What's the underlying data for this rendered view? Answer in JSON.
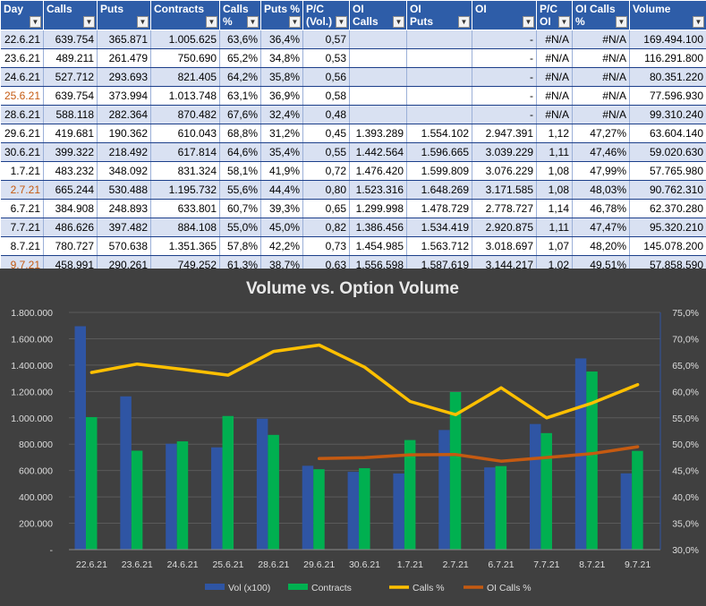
{
  "table": {
    "headers": [
      "Day",
      "Calls",
      "Puts",
      "Contracts",
      "Calls %",
      "Puts %",
      "P/C\n(Vol.)",
      "OI\nCalls",
      "OI\nPuts",
      "OI",
      "P/C\nOI",
      "OI Calls %",
      "Volume"
    ],
    "rows": [
      {
        "day": "22.6.21",
        "calls": "639.754",
        "puts": "365.871",
        "contracts": "1.005.625",
        "calls_pct": "63,6%",
        "puts_pct": "36,4%",
        "pc_vol": "0,57",
        "oi_calls": "",
        "oi_puts": "",
        "oi": "-",
        "pc_oi": "#N/A",
        "oi_calls_pct": "#N/A",
        "volume": "169.494.100",
        "highlight": false
      },
      {
        "day": "23.6.21",
        "calls": "489.211",
        "puts": "261.479",
        "contracts": "750.690",
        "calls_pct": "65,2%",
        "puts_pct": "34,8%",
        "pc_vol": "0,53",
        "oi_calls": "",
        "oi_puts": "",
        "oi": "-",
        "pc_oi": "#N/A",
        "oi_calls_pct": "#N/A",
        "volume": "116.291.800",
        "highlight": false
      },
      {
        "day": "24.6.21",
        "calls": "527.712",
        "puts": "293.693",
        "contracts": "821.405",
        "calls_pct": "64,2%",
        "puts_pct": "35,8%",
        "pc_vol": "0,56",
        "oi_calls": "",
        "oi_puts": "",
        "oi": "-",
        "pc_oi": "#N/A",
        "oi_calls_pct": "#N/A",
        "volume": "80.351.220",
        "highlight": false
      },
      {
        "day": "25.6.21",
        "calls": "639.754",
        "puts": "373.994",
        "contracts": "1.013.748",
        "calls_pct": "63,1%",
        "puts_pct": "36,9%",
        "pc_vol": "0,58",
        "oi_calls": "",
        "oi_puts": "",
        "oi": "-",
        "pc_oi": "#N/A",
        "oi_calls_pct": "#N/A",
        "volume": "77.596.930",
        "highlight": true
      },
      {
        "day": "28.6.21",
        "calls": "588.118",
        "puts": "282.364",
        "contracts": "870.482",
        "calls_pct": "67,6%",
        "puts_pct": "32,4%",
        "pc_vol": "0,48",
        "oi_calls": "",
        "oi_puts": "",
        "oi": "-",
        "pc_oi": "#N/A",
        "oi_calls_pct": "#N/A",
        "volume": "99.310.240",
        "highlight": false
      },
      {
        "day": "29.6.21",
        "calls": "419.681",
        "puts": "190.362",
        "contracts": "610.043",
        "calls_pct": "68,8%",
        "puts_pct": "31,2%",
        "pc_vol": "0,45",
        "oi_calls": "1.393.289",
        "oi_puts": "1.554.102",
        "oi": "2.947.391",
        "pc_oi": "1,12",
        "oi_calls_pct": "47,27%",
        "volume": "63.604.140",
        "highlight": false
      },
      {
        "day": "30.6.21",
        "calls": "399.322",
        "puts": "218.492",
        "contracts": "617.814",
        "calls_pct": "64,6%",
        "puts_pct": "35,4%",
        "pc_vol": "0,55",
        "oi_calls": "1.442.564",
        "oi_puts": "1.596.665",
        "oi": "3.039.229",
        "pc_oi": "1,11",
        "oi_calls_pct": "47,46%",
        "volume": "59.020.630",
        "highlight": false
      },
      {
        "day": "1.7.21",
        "calls": "483.232",
        "puts": "348.092",
        "contracts": "831.324",
        "calls_pct": "58,1%",
        "puts_pct": "41,9%",
        "pc_vol": "0,72",
        "oi_calls": "1.476.420",
        "oi_puts": "1.599.809",
        "oi": "3.076.229",
        "pc_oi": "1,08",
        "oi_calls_pct": "47,99%",
        "volume": "57.765.980",
        "highlight": false
      },
      {
        "day": "2.7.21",
        "calls": "665.244",
        "puts": "530.488",
        "contracts": "1.195.732",
        "calls_pct": "55,6%",
        "puts_pct": "44,4%",
        "pc_vol": "0,80",
        "oi_calls": "1.523.316",
        "oi_puts": "1.648.269",
        "oi": "3.171.585",
        "pc_oi": "1,08",
        "oi_calls_pct": "48,03%",
        "volume": "90.762.310",
        "highlight": true
      },
      {
        "day": "6.7.21",
        "calls": "384.908",
        "puts": "248.893",
        "contracts": "633.801",
        "calls_pct": "60,7%",
        "puts_pct": "39,3%",
        "pc_vol": "0,65",
        "oi_calls": "1.299.998",
        "oi_puts": "1.478.729",
        "oi": "2.778.727",
        "pc_oi": "1,14",
        "oi_calls_pct": "46,78%",
        "volume": "62.370.280",
        "highlight": false
      },
      {
        "day": "7.7.21",
        "calls": "486.626",
        "puts": "397.482",
        "contracts": "884.108",
        "calls_pct": "55,0%",
        "puts_pct": "45,0%",
        "pc_vol": "0,82",
        "oi_calls": "1.386.456",
        "oi_puts": "1.534.419",
        "oi": "2.920.875",
        "pc_oi": "1,11",
        "oi_calls_pct": "47,47%",
        "volume": "95.320.210",
        "highlight": false
      },
      {
        "day": "8.7.21",
        "calls": "780.727",
        "puts": "570.638",
        "contracts": "1.351.365",
        "calls_pct": "57,8%",
        "puts_pct": "42,2%",
        "pc_vol": "0,73",
        "oi_calls": "1.454.985",
        "oi_puts": "1.563.712",
        "oi": "3.018.697",
        "pc_oi": "1,07",
        "oi_calls_pct": "48,20%",
        "volume": "145.078.200",
        "highlight": false
      },
      {
        "day": "9.7.21",
        "calls": "458.991",
        "puts": "290.261",
        "contracts": "749.252",
        "calls_pct": "61,3%",
        "puts_pct": "38,7%",
        "pc_vol": "0,63",
        "oi_calls": "1.556.598",
        "oi_puts": "1.587.619",
        "oi": "3.144.217",
        "pc_oi": "1,02",
        "oi_calls_pct": "49,51%",
        "volume": "57.858.590",
        "highlight": true
      }
    ]
  },
  "chart_data": {
    "type": "bar",
    "title": "Volume vs. Option Volume",
    "categories": [
      "22.6.21",
      "23.6.21",
      "24.6.21",
      "25.6.21",
      "28.6.21",
      "29.6.21",
      "30.6.21",
      "1.7.21",
      "2.7.21",
      "6.7.21",
      "7.7.21",
      "8.7.21",
      "9.7.21"
    ],
    "series": [
      {
        "name": "Vol (x100)",
        "kind": "bar",
        "axis": "left",
        "color": "#2f55a4",
        "values": [
          1694941,
          1162918,
          803512,
          775969,
          993102,
          636041,
          590206,
          577660,
          907623,
          623703,
          953202,
          1450782,
          578586
        ]
      },
      {
        "name": "Contracts",
        "kind": "bar",
        "axis": "left",
        "color": "#00b050",
        "values": [
          1005625,
          750690,
          821405,
          1013748,
          870482,
          610043,
          617814,
          831324,
          1195732,
          633801,
          884108,
          1351365,
          749252
        ]
      },
      {
        "name": "Calls %",
        "kind": "line",
        "axis": "right",
        "color": "#ffc000",
        "values": [
          63.6,
          65.2,
          64.2,
          63.1,
          67.6,
          68.8,
          64.6,
          58.1,
          55.6,
          60.7,
          55.0,
          57.8,
          61.3
        ]
      },
      {
        "name": "OI Calls %",
        "kind": "line",
        "axis": "right",
        "color": "#c55a11",
        "values": [
          null,
          null,
          null,
          null,
          null,
          47.27,
          47.46,
          47.99,
          48.03,
          46.78,
          47.47,
          48.2,
          49.51
        ]
      }
    ],
    "y_left": {
      "min": 0,
      "max": 1800000,
      "ticks": [
        "-",
        "200.000",
        "400.000",
        "600.000",
        "800.000",
        "1.000.000",
        "1.200.000",
        "1.400.000",
        "1.600.000",
        "1.800.000"
      ]
    },
    "y_right": {
      "min": 30,
      "max": 75,
      "ticks": [
        "30,0%",
        "35,0%",
        "40,0%",
        "45,0%",
        "50,0%",
        "55,0%",
        "60,0%",
        "65,0%",
        "70,0%",
        "75,0%"
      ]
    },
    "legend_position": "bottom",
    "background": "#404040"
  }
}
